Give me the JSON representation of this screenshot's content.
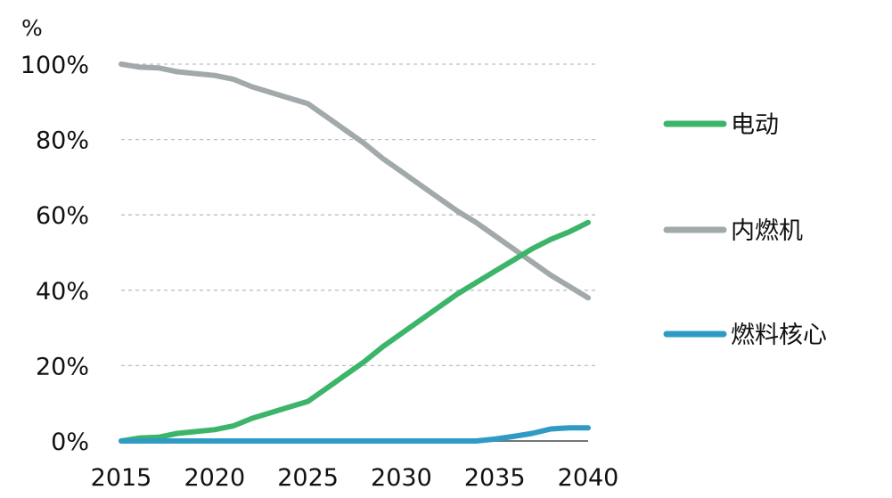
{
  "chart_data": {
    "type": "line",
    "title": "",
    "unit_label": "%",
    "xlabel": "",
    "ylabel": "",
    "xlim": [
      2015,
      2040
    ],
    "ylim": [
      0,
      100
    ],
    "x_ticks": [
      "2015",
      "2020",
      "2025",
      "2030",
      "2035",
      "2040"
    ],
    "y_ticks": [
      "0%",
      "20%",
      "40%",
      "60%",
      "80%",
      "100%"
    ],
    "grid": "horizontal dashed",
    "legend_position": "right",
    "x": [
      2015,
      2016,
      2017,
      2018,
      2019,
      2020,
      2021,
      2022,
      2023,
      2024,
      2025,
      2026,
      2027,
      2028,
      2029,
      2030,
      2031,
      2032,
      2033,
      2034,
      2035,
      2036,
      2037,
      2038,
      2039,
      2040
    ],
    "series": [
      {
        "name": "电动",
        "color": "#3cb56a",
        "values": [
          0,
          0.8,
          1,
          2,
          2.5,
          3,
          4,
          6,
          7.5,
          9,
          10.5,
          14,
          17.5,
          21,
          25,
          28.5,
          32,
          35.5,
          39,
          42,
          45,
          48,
          51,
          53.5,
          55.5,
          58
        ]
      },
      {
        "name": "内燃机",
        "color": "#a2a9ab",
        "values": [
          100,
          99.2,
          99,
          98,
          97.5,
          97,
          96,
          94,
          92.5,
          91,
          89.5,
          86,
          82.5,
          79,
          75,
          71.5,
          68,
          64.5,
          61,
          58,
          54.5,
          51,
          47.5,
          44,
          41,
          38
        ]
      },
      {
        "name": "燃料核心",
        "color": "#2f9bc4",
        "values": [
          0,
          0,
          0,
          0,
          0,
          0,
          0,
          0,
          0,
          0,
          0,
          0,
          0,
          0,
          0,
          0,
          0,
          0,
          0,
          0,
          0.5,
          1.2,
          2,
          3.2,
          3.5,
          3.5
        ]
      }
    ]
  }
}
